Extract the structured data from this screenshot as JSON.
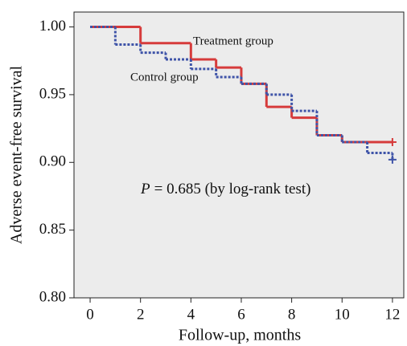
{
  "chart_data": {
    "type": "step",
    "x_label": "Follow-up, months",
    "y_label": "Adverse event-free survival",
    "p_symbol": "P",
    "p_text": "= 0.685 (by log-rank test)",
    "xlim": [
      -0.64,
      12.45
    ],
    "ylim": [
      0.8,
      1.011
    ],
    "xticks": [
      0,
      2,
      4,
      6,
      8,
      10,
      12
    ],
    "yticks": [
      {
        "value": 0.8,
        "label": "0.80"
      },
      {
        "value": 0.85,
        "label": "0.85"
      },
      {
        "value": 0.9,
        "label": "0.90"
      },
      {
        "value": 0.95,
        "label": "0.95"
      },
      {
        "value": 1.0,
        "label": "1.00"
      }
    ],
    "series": [
      {
        "name": "Treatment group",
        "color": "#d63b3b",
        "dashed": false,
        "x": [
          0,
          2,
          4,
          5,
          6,
          7,
          8,
          9,
          10,
          12
        ],
        "values": [
          1.0,
          0.988,
          0.976,
          0.97,
          0.958,
          0.941,
          0.933,
          0.92,
          0.915,
          0.915
        ]
      },
      {
        "name": "Control group",
        "color": "#3f54a8",
        "dashed": true,
        "x": [
          0,
          1,
          2,
          3,
          4,
          5,
          6,
          7,
          8,
          9,
          10,
          11,
          12
        ],
        "values": [
          1.0,
          0.987,
          0.981,
          0.976,
          0.969,
          0.963,
          0.958,
          0.95,
          0.938,
          0.92,
          0.915,
          0.907,
          0.902
        ]
      }
    ]
  }
}
